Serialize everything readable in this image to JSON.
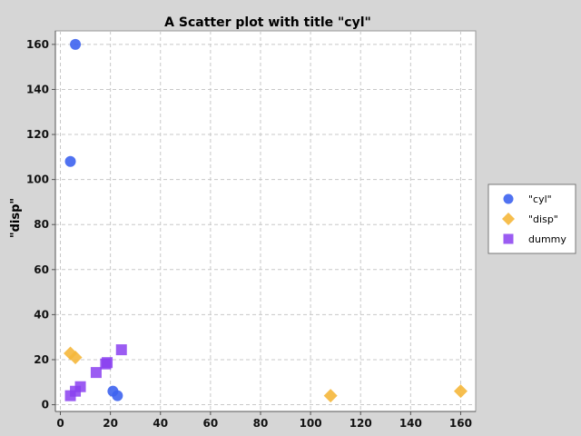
{
  "chart_data": {
    "type": "scatter",
    "title": "A Scatter plot with title \"cyl\"",
    "xlabel": "",
    "ylabel": "\"disp\"",
    "xlim": [
      -2,
      166
    ],
    "ylim": [
      -3,
      166
    ],
    "x_ticks": [
      0,
      20,
      40,
      60,
      80,
      100,
      120,
      140,
      160
    ],
    "y_ticks": [
      0,
      20,
      40,
      60,
      80,
      100,
      120,
      140,
      160
    ],
    "grid": true,
    "legend_position": "right",
    "series": [
      {
        "name": "\"cyl\"",
        "marker": "circle",
        "color": "#3d63f0",
        "points": [
          [
            6,
            160
          ],
          [
            4,
            108
          ],
          [
            21,
            6
          ],
          [
            22.8,
            4
          ]
        ]
      },
      {
        "name": "\"disp\"",
        "marker": "diamond",
        "color": "#f5b73b",
        "points": [
          [
            4,
            22.8
          ],
          [
            6,
            21
          ],
          [
            108,
            4
          ],
          [
            160,
            6
          ]
        ]
      },
      {
        "name": "dummy",
        "marker": "square",
        "color": "#8a3ff0",
        "points": [
          [
            4,
            4
          ],
          [
            6,
            6
          ],
          [
            8,
            8
          ],
          [
            14.3,
            14.3
          ],
          [
            18.1,
            18.1
          ],
          [
            18.7,
            18.7
          ],
          [
            24.4,
            24.4
          ]
        ]
      }
    ]
  }
}
